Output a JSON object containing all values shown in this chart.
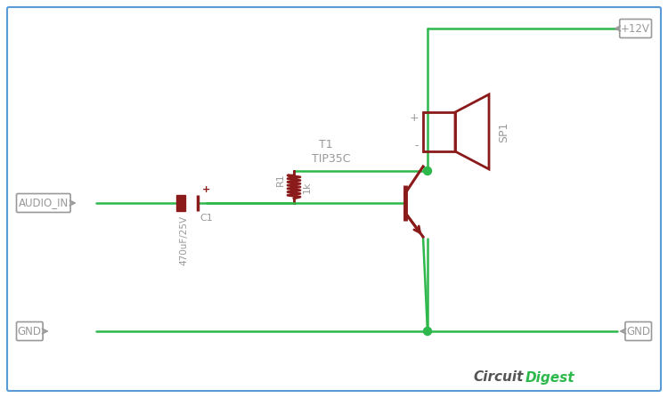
{
  "bg_color": "#ffffff",
  "border_color": "#5b9bd5",
  "wire_color": "#2db84b",
  "component_color": "#8b1a1a",
  "label_color": "#999999",
  "junction_color": "#2db84b",
  "fig_width": 7.5,
  "fig_height": 4.47,
  "audio_in_label": "AUDIO_IN",
  "gnd_left_label": "GND",
  "gnd_right_label": "GND",
  "vcc_label": "+12V",
  "c1_label": "C1",
  "c1_value": "470uF/25V",
  "r1_label": "R1",
  "r1_value": "1k",
  "t1_label": "T1",
  "t1_value": "TIP35C",
  "sp1_label": "SP1",
  "circuit_label1": "Circuit",
  "circuit_label2": "Digest",
  "circuit_color1": "#555555",
  "circuit_color2": "#2db84b"
}
